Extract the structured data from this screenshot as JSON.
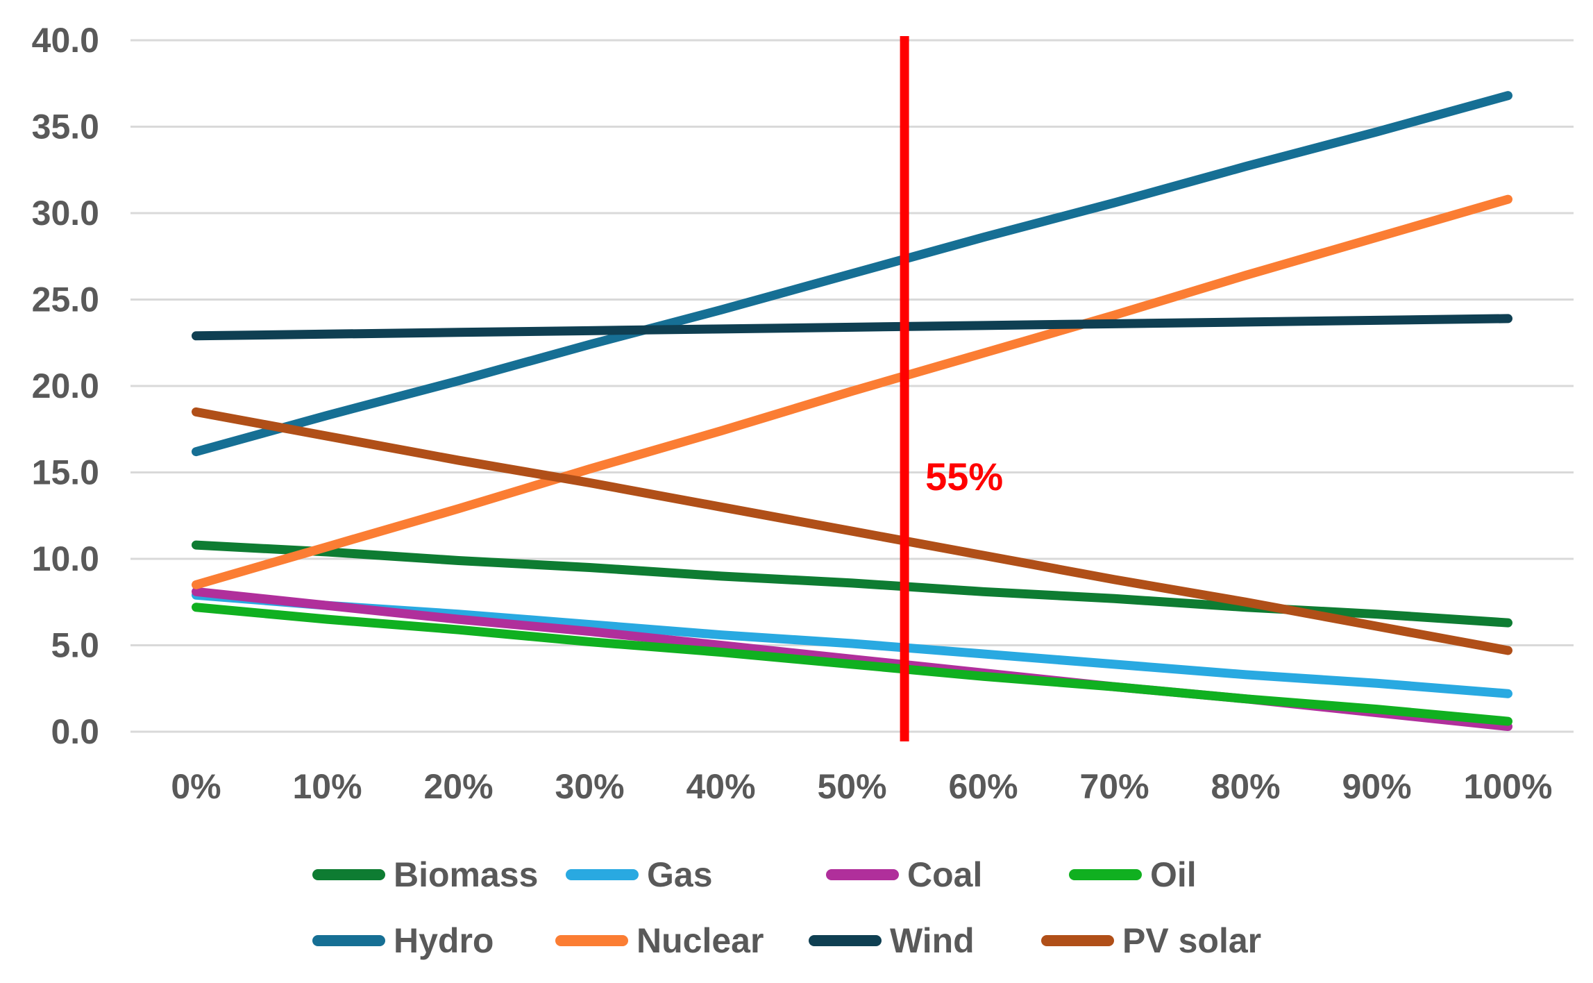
{
  "chart_data": {
    "type": "line",
    "title": "",
    "xlabel": "",
    "ylabel": "",
    "x_tick_labels": [
      "0%",
      "10%",
      "20%",
      "30%",
      "40%",
      "50%",
      "60%",
      "70%",
      "80%",
      "90%",
      "100%"
    ],
    "y_tick_labels": [
      "0.0",
      "5.0",
      "10.0",
      "15.0",
      "20.0",
      "25.0",
      "30.0",
      "35.0",
      "40.0"
    ],
    "y_axis": {
      "min": 0,
      "max": 40,
      "step": 5
    },
    "grid": true,
    "legend_position": "bottom",
    "series": [
      {
        "name": "Biomass",
        "color": "#0E7C32",
        "values": [
          10.8,
          10.4,
          9.9,
          9.5,
          9.0,
          8.6,
          8.1,
          7.7,
          7.2,
          6.8,
          6.3
        ]
      },
      {
        "name": "Gas",
        "color": "#29A9E1",
        "values": [
          7.9,
          7.3,
          6.8,
          6.2,
          5.6,
          5.1,
          4.5,
          3.9,
          3.3,
          2.8,
          2.2
        ]
      },
      {
        "name": "Coal",
        "color": "#B02F9B",
        "values": [
          8.1,
          7.3,
          6.5,
          5.8,
          5.0,
          4.2,
          3.4,
          2.6,
          1.9,
          1.1,
          0.3
        ]
      },
      {
        "name": "Oil",
        "color": "#10B020",
        "values": [
          7.2,
          6.5,
          5.9,
          5.2,
          4.6,
          3.9,
          3.2,
          2.6,
          1.9,
          1.3,
          0.6
        ]
      },
      {
        "name": "Hydro",
        "color": "#166F94",
        "values": [
          16.2,
          18.3,
          20.3,
          22.4,
          24.4,
          26.5,
          28.6,
          30.6,
          32.7,
          34.7,
          36.8
        ]
      },
      {
        "name": "Nuclear",
        "color": "#FB7D33",
        "values": [
          8.5,
          10.7,
          12.9,
          15.2,
          17.4,
          19.7,
          21.9,
          24.1,
          26.4,
          28.6,
          30.8
        ]
      },
      {
        "name": "Wind",
        "color": "#0F3F52",
        "values": [
          22.9,
          23.0,
          23.1,
          23.2,
          23.3,
          23.4,
          23.5,
          23.6,
          23.7,
          23.8,
          23.9
        ]
      },
      {
        "name": "PV solar",
        "color": "#B04F18",
        "values": [
          18.5,
          17.1,
          15.7,
          14.4,
          13.0,
          11.6,
          10.2,
          8.8,
          7.5,
          6.1,
          4.7
        ]
      }
    ],
    "annotation": {
      "label": "55%",
      "x_value_percent": 54,
      "color": "#FF0000"
    }
  },
  "legend": {
    "rows": [
      [
        "Biomass",
        "Gas",
        "Coal",
        "Oil"
      ],
      [
        "Hydro",
        "Nuclear",
        "Wind",
        "PV solar"
      ]
    ]
  },
  "colors": {
    "axis_text": "#595959",
    "legend_text": "#595959",
    "gridline": "#D9D9D9",
    "background": "#FFFFFF"
  }
}
